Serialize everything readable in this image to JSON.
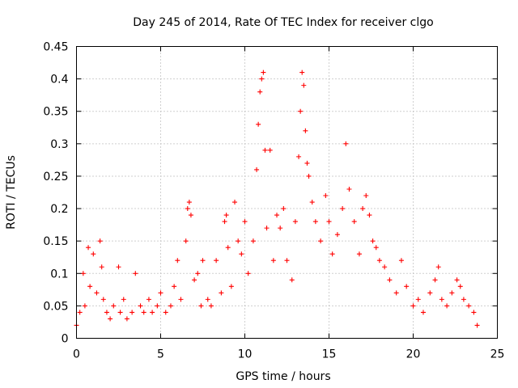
{
  "chart_data": {
    "type": "scatter",
    "title": "Day 245 of 2014, Rate Of TEC Index for receiver clgo",
    "xlabel": "GPS time / hours",
    "ylabel": "ROTI / TECUs",
    "xlim": [
      0,
      25
    ],
    "ylim": [
      0,
      0.45
    ],
    "xticks": [
      "0",
      "5",
      "10",
      "15",
      "20",
      "25"
    ],
    "yticks": [
      "0",
      "0.05",
      "0.1",
      "0.15",
      "0.2",
      "0.25",
      "0.3",
      "0.35",
      "0.4",
      "0.45"
    ],
    "xtick_values": [
      0,
      5,
      10,
      15,
      20,
      25
    ],
    "ytick_values": [
      0,
      0.05,
      0.1,
      0.15,
      0.2,
      0.25,
      0.3,
      0.35,
      0.4,
      0.45
    ],
    "grid": true,
    "marker": "+",
    "marker_color": "#ff0000",
    "series": [
      {
        "name": "ROTI",
        "x": [
          0.0,
          0.2,
          0.4,
          0.5,
          0.7,
          0.8,
          1.0,
          1.2,
          1.4,
          1.5,
          1.6,
          1.8,
          2.0,
          2.2,
          2.5,
          2.6,
          2.8,
          3.0,
          3.3,
          3.5,
          3.8,
          4.0,
          4.3,
          4.5,
          4.8,
          5.0,
          5.3,
          5.6,
          5.8,
          6.0,
          6.2,
          6.5,
          6.6,
          6.7,
          6.8,
          7.0,
          7.2,
          7.4,
          7.5,
          7.8,
          8.0,
          8.3,
          8.6,
          8.8,
          8.9,
          9.0,
          9.2,
          9.4,
          9.6,
          9.8,
          10.0,
          10.2,
          10.5,
          10.7,
          10.8,
          10.9,
          11.0,
          11.1,
          11.2,
          11.3,
          11.5,
          11.7,
          11.9,
          12.1,
          12.3,
          12.5,
          12.8,
          13.0,
          13.2,
          13.3,
          13.4,
          13.5,
          13.6,
          13.7,
          13.8,
          14.0,
          14.2,
          14.5,
          14.8,
          15.0,
          15.2,
          15.5,
          15.8,
          16.0,
          16.2,
          16.5,
          16.8,
          17.0,
          17.2,
          17.4,
          17.6,
          17.8,
          18.0,
          18.3,
          18.6,
          19.0,
          19.3,
          19.6,
          20.0,
          20.3,
          20.6,
          21.0,
          21.3,
          21.5,
          21.7,
          22.0,
          22.3,
          22.6,
          22.8,
          23.0,
          23.3,
          23.6,
          23.8
        ],
        "y": [
          0.02,
          0.04,
          0.1,
          0.05,
          0.14,
          0.08,
          0.13,
          0.07,
          0.15,
          0.11,
          0.06,
          0.04,
          0.03,
          0.05,
          0.11,
          0.04,
          0.06,
          0.03,
          0.04,
          0.1,
          0.05,
          0.04,
          0.06,
          0.04,
          0.05,
          0.07,
          0.04,
          0.05,
          0.08,
          0.12,
          0.06,
          0.15,
          0.2,
          0.21,
          0.19,
          0.09,
          0.1,
          0.05,
          0.12,
          0.06,
          0.05,
          0.12,
          0.07,
          0.18,
          0.19,
          0.14,
          0.08,
          0.21,
          0.15,
          0.13,
          0.18,
          0.1,
          0.15,
          0.26,
          0.33,
          0.38,
          0.4,
          0.41,
          0.29,
          0.17,
          0.29,
          0.12,
          0.19,
          0.17,
          0.2,
          0.12,
          0.09,
          0.18,
          0.28,
          0.35,
          0.41,
          0.39,
          0.32,
          0.27,
          0.25,
          0.21,
          0.18,
          0.15,
          0.22,
          0.18,
          0.13,
          0.16,
          0.2,
          0.3,
          0.23,
          0.18,
          0.13,
          0.2,
          0.22,
          0.19,
          0.15,
          0.14,
          0.12,
          0.11,
          0.09,
          0.07,
          0.12,
          0.08,
          0.05,
          0.06,
          0.04,
          0.07,
          0.09,
          0.11,
          0.06,
          0.05,
          0.07,
          0.09,
          0.08,
          0.06,
          0.05,
          0.04,
          0.02
        ]
      }
    ]
  }
}
